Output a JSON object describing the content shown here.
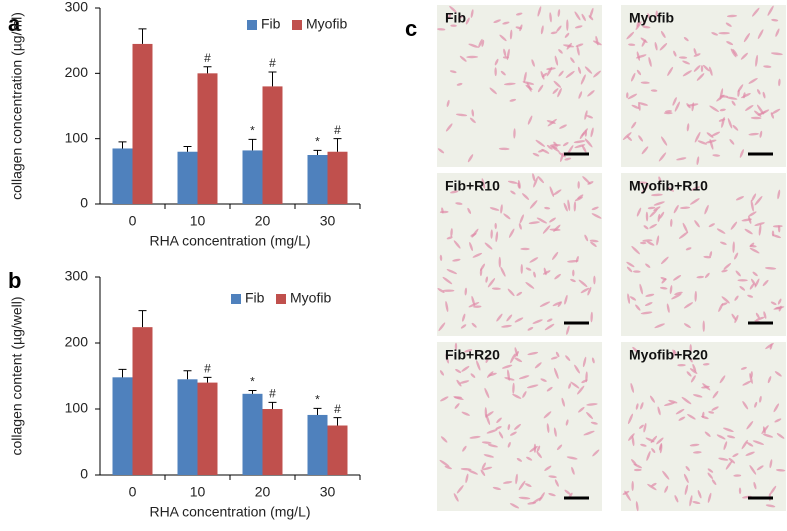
{
  "chart_data": [
    {
      "type": "bar",
      "panel_label": "a",
      "ylabel": "collagen concentration (µg/ml)",
      "xlabel": "RHA concentration (mg/L)",
      "categories": [
        "0",
        "10",
        "20",
        "30"
      ],
      "series": [
        {
          "name": "Fib",
          "color": "#4f81bd",
          "values": [
            85,
            80,
            82,
            75
          ],
          "errors": [
            10,
            8,
            17,
            7
          ],
          "annotations": [
            null,
            null,
            "*",
            "*"
          ]
        },
        {
          "name": "Myofib",
          "color": "#c0504d",
          "values": [
            245,
            200,
            180,
            80
          ],
          "errors": [
            23,
            10,
            22,
            20
          ],
          "annotations": [
            null,
            "#",
            "#",
            "#"
          ]
        }
      ],
      "ylim": [
        0,
        300
      ],
      "yticks": [
        0,
        100,
        200,
        300
      ],
      "grid": false,
      "legend": "top-right"
    },
    {
      "type": "bar",
      "panel_label": "b",
      "ylabel": "collagen content (µg/well)",
      "xlabel": "RHA concentration (mg/L)",
      "categories": [
        "0",
        "10",
        "20",
        "30"
      ],
      "series": [
        {
          "name": "Fib",
          "color": "#4f81bd",
          "values": [
            148,
            145,
            123,
            91
          ],
          "errors": [
            12,
            13,
            5,
            10
          ],
          "annotations": [
            null,
            null,
            "*",
            "*"
          ]
        },
        {
          "name": "Myofib",
          "color": "#c0504d",
          "values": [
            224,
            140,
            100,
            75
          ],
          "errors": [
            25,
            8,
            10,
            12
          ],
          "annotations": [
            null,
            "#",
            "#",
            "#"
          ]
        }
      ],
      "ylim": [
        0,
        300
      ],
      "yticks": [
        0,
        100,
        200,
        300
      ],
      "grid": false,
      "legend": "top-right"
    }
  ],
  "panel_c": {
    "label": "c",
    "images": [
      {
        "label": "Fib"
      },
      {
        "label": "Myofib"
      },
      {
        "label": "Fib+R10"
      },
      {
        "label": "Myofib+R10"
      },
      {
        "label": "Fib+R20"
      },
      {
        "label": "Myofib+R20"
      }
    ]
  }
}
